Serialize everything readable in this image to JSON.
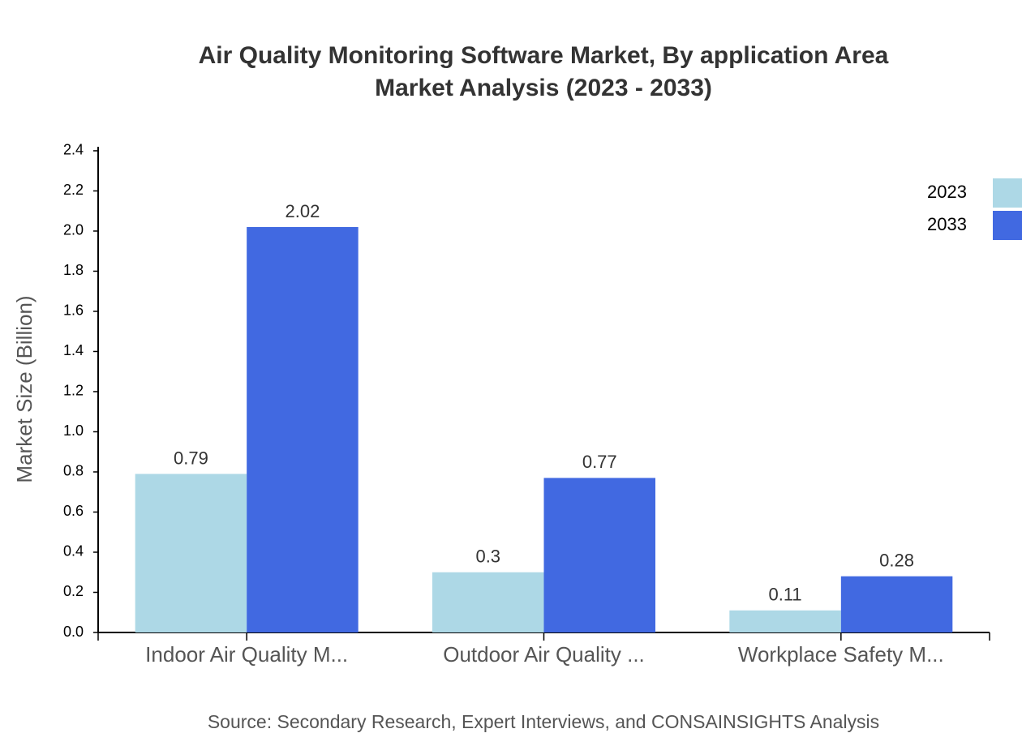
{
  "chart_data": {
    "type": "bar",
    "title": [
      "Air Quality Monitoring Software Market, By application Area",
      "Market Analysis (2023 - 2033)"
    ],
    "y_label": "Market Size (Billion)",
    "source": "Source: Secondary Research, Expert Interviews, and CONSAINSIGHTS Analysis",
    "categories": [
      "Indoor Air Quality M...",
      "Outdoor Air Quality ...",
      "Workplace Safety M..."
    ],
    "series": [
      {
        "name": "2023",
        "color": "#add8e6",
        "values": [
          0.79,
          0.3,
          0.11
        ]
      },
      {
        "name": "2033",
        "color": "#4169e1",
        "values": [
          2.02,
          0.77,
          0.28
        ]
      }
    ],
    "ylim": [
      0,
      2.42
    ],
    "yticks": [
      {
        "value": 0,
        "label": "0.0"
      },
      0.2,
      0.4,
      0.6,
      0.8,
      {
        "value": 1,
        "label": "1.0"
      },
      1.2,
      1.4,
      1.6,
      1.8,
      {
        "value": 2,
        "label": "2.0"
      },
      2.2,
      2.4
    ],
    "legend": "top-right"
  }
}
